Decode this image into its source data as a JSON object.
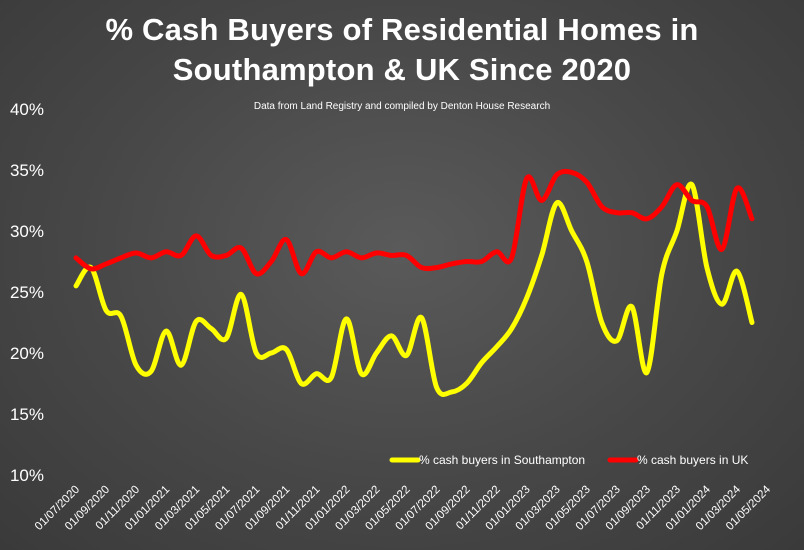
{
  "chart_data": {
    "type": "line",
    "title_lines": [
      "% Cash Buyers of Residential Homes in",
      "Southampton & UK Since 2020"
    ],
    "subtitle": "Data from Land Registry and compiled by Denton House Research",
    "ylim": [
      10,
      40
    ],
    "yticks": [
      "10%",
      "15%",
      "20%",
      "25%",
      "30%",
      "35%",
      "40%"
    ],
    "ytick_values": [
      10,
      15,
      20,
      25,
      30,
      35,
      40
    ],
    "xticks": [
      "01/07/2020",
      "01/09/2020",
      "01/11/2020",
      "01/01/2021",
      "01/03/2021",
      "01/05/2021",
      "01/07/2021",
      "01/09/2021",
      "01/11/2021",
      "01/01/2022",
      "01/03/2022",
      "01/05/2022",
      "01/07/2022",
      "01/09/2022",
      "01/11/2022",
      "01/01/2023",
      "01/03/2023",
      "01/05/2023",
      "01/07/2023",
      "01/09/2023",
      "01/11/2023",
      "01/01/2024",
      "01/03/2024",
      "01/05/2024"
    ],
    "x": [
      "07/2020",
      "08/2020",
      "09/2020",
      "10/2020",
      "11/2020",
      "12/2020",
      "01/2021",
      "02/2021",
      "03/2021",
      "04/2021",
      "05/2021",
      "06/2021",
      "07/2021",
      "08/2021",
      "09/2021",
      "10/2021",
      "11/2021",
      "12/2021",
      "01/2022",
      "02/2022",
      "03/2022",
      "04/2022",
      "05/2022",
      "06/2022",
      "07/2022",
      "08/2022",
      "09/2022",
      "10/2022",
      "11/2022",
      "12/2022",
      "01/2023",
      "02/2023",
      "03/2023",
      "04/2023",
      "05/2023",
      "06/2023",
      "07/2023",
      "08/2023",
      "09/2023",
      "10/2023",
      "11/2023",
      "12/2023",
      "01/2024",
      "02/2024",
      "03/2024",
      "04/2024"
    ],
    "series": [
      {
        "name": "% cash buyers in Southampton",
        "color": "#ffff00",
        "values": [
          25.5,
          27.0,
          23.5,
          23.0,
          19.0,
          18.5,
          21.8,
          19.0,
          22.6,
          22.0,
          21.2,
          24.8,
          20.0,
          20.0,
          20.3,
          17.5,
          18.3,
          18.0,
          22.8,
          18.3,
          20.0,
          21.4,
          19.8,
          22.9,
          17.2,
          16.8,
          17.5,
          19.2,
          20.5,
          22.0,
          24.5,
          28.0,
          32.3,
          30.0,
          27.5,
          22.5,
          21.0,
          23.8,
          18.4,
          26.5,
          30.0,
          33.8,
          27.0,
          24.0,
          26.7,
          22.5
        ]
      },
      {
        "name": "% cash buyers in UK",
        "color": "#ff0000",
        "values": [
          27.8,
          26.9,
          27.3,
          27.8,
          28.2,
          27.8,
          28.3,
          28.0,
          29.6,
          28.0,
          28.0,
          28.6,
          26.5,
          27.5,
          29.3,
          26.5,
          28.3,
          27.8,
          28.3,
          27.8,
          28.2,
          28.0,
          28.0,
          27.0,
          27.0,
          27.3,
          27.5,
          27.5,
          28.3,
          27.8,
          34.3,
          32.5,
          34.6,
          34.8,
          34.0,
          32.0,
          31.5,
          31.5,
          31.0,
          32.0,
          33.8,
          32.5,
          32.0,
          28.5,
          33.5,
          31.0
        ]
      }
    ],
    "legend_position": "bottom-right",
    "grid": false
  }
}
